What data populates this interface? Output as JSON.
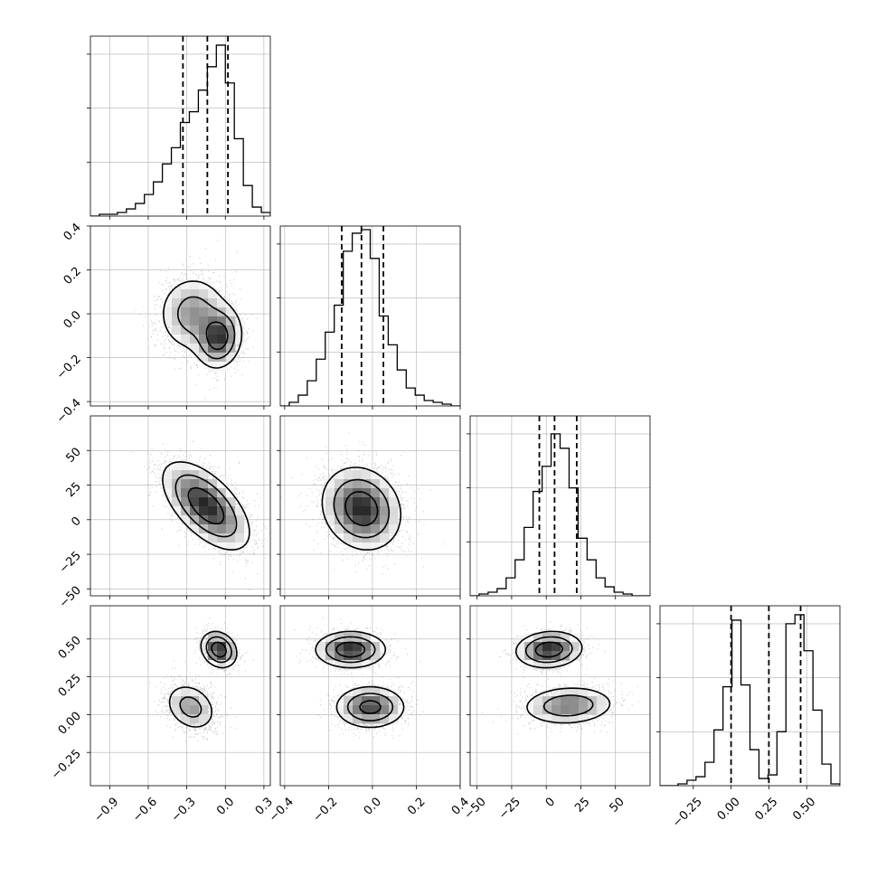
{
  "figure": {
    "type": "corner-plot",
    "num_parameters": 4
  },
  "colors": {
    "contour": "#000000",
    "points": "#9a9a9a",
    "grid": "#b0b0b0",
    "quantile_line": "#000000"
  },
  "chart_data": [
    {
      "panel": "hist-0",
      "type": "histogram",
      "xlim": [
        -1.05,
        0.35
      ],
      "edges": [
        -1.05,
        -0.98,
        -0.91,
        -0.84,
        -0.77,
        -0.7,
        -0.63,
        -0.56,
        -0.49,
        -0.42,
        -0.35,
        -0.28,
        -0.21,
        -0.14,
        -0.07,
        0.0,
        0.07,
        0.14,
        0.21,
        0.28,
        0.35
      ],
      "counts": [
        0.0,
        0.01,
        0.01,
        0.02,
        0.04,
        0.07,
        0.12,
        0.19,
        0.29,
        0.38,
        0.52,
        0.58,
        0.7,
        0.83,
        0.95,
        0.74,
        0.43,
        0.17,
        0.05,
        0.02
      ],
      "quantiles": [
        -0.33,
        -0.14,
        0.02
      ],
      "ylim": [
        0,
        1.0
      ],
      "y_ticks": [
        0.3,
        0.6,
        0.9
      ],
      "grid": true
    },
    {
      "panel": "hist-1",
      "type": "histogram",
      "xlim": [
        -0.42,
        0.4
      ],
      "edges": [
        -0.42,
        -0.379,
        -0.338,
        -0.297,
        -0.256,
        -0.215,
        -0.174,
        -0.133,
        -0.092,
        -0.051,
        -0.01,
        0.031,
        0.072,
        0.113,
        0.154,
        0.195,
        0.236,
        0.277,
        0.318,
        0.359,
        0.4
      ],
      "counts": [
        0.0,
        0.02,
        0.06,
        0.14,
        0.26,
        0.41,
        0.56,
        0.86,
        0.96,
        0.98,
        0.82,
        0.5,
        0.34,
        0.2,
        0.1,
        0.06,
        0.03,
        0.02,
        0.01,
        0.0
      ],
      "quantiles": [
        -0.14,
        -0.05,
        0.05
      ],
      "ylim": [
        0,
        1.0
      ],
      "y_ticks": [
        0.3,
        0.6,
        0.9
      ],
      "grid": true
    },
    {
      "panel": "hist-2",
      "type": "histogram",
      "xlim": [
        -55,
        75
      ],
      "edges": [
        -55,
        -48.5,
        -42,
        -35.5,
        -29,
        -22.5,
        -16,
        -9.5,
        -3,
        3.5,
        10,
        16.5,
        23,
        29.5,
        36,
        42.5,
        49,
        55.5,
        62,
        68.5,
        75
      ],
      "counts": [
        0.0,
        0.01,
        0.02,
        0.04,
        0.1,
        0.2,
        0.38,
        0.58,
        0.72,
        0.9,
        0.82,
        0.6,
        0.32,
        0.2,
        0.1,
        0.05,
        0.02,
        0.01,
        0.0,
        0.0
      ],
      "quantiles": [
        -5,
        6,
        22
      ],
      "ylim": [
        0,
        1.0
      ],
      "y_ticks": [
        0.3,
        0.6,
        0.9
      ],
      "grid": true
    },
    {
      "panel": "hist-3",
      "type": "histogram",
      "xlim": [
        -0.47,
        0.72
      ],
      "edges": [
        -0.47,
        -0.4105,
        -0.351,
        -0.2915,
        -0.232,
        -0.1725,
        -0.113,
        -0.0535,
        0.006,
        0.0655,
        0.125,
        0.1845,
        0.244,
        0.3035,
        0.363,
        0.4225,
        0.482,
        0.5415,
        0.601,
        0.6605,
        0.72
      ],
      "counts": [
        0.0,
        0.0,
        0.01,
        0.03,
        0.05,
        0.13,
        0.31,
        0.55,
        0.92,
        0.56,
        0.2,
        0.04,
        0.06,
        0.3,
        0.9,
        0.95,
        0.75,
        0.42,
        0.12,
        0.01
      ],
      "quantiles": [
        0.0,
        0.25,
        0.46
      ],
      "ylim": [
        0,
        1.0
      ],
      "y_ticks": [
        0.3,
        0.6,
        0.9
      ],
      "grid": true
    },
    {
      "panel": "scatter-1-0",
      "type": "scatter-contour",
      "x_param": 0,
      "y_param": 1,
      "xlim": [
        -1.05,
        0.35
      ],
      "ylim": [
        -0.42,
        0.4
      ],
      "clusters": [
        {
          "mean": [
            -0.25,
            0.0
          ],
          "sd": [
            0.14,
            0.09
          ],
          "rho": 0.0,
          "weight": 0.55
        },
        {
          "mean": [
            -0.05,
            -0.11
          ],
          "sd": [
            0.09,
            0.07
          ],
          "rho": 0.1,
          "weight": 0.45
        }
      ],
      "grid": true
    },
    {
      "panel": "scatter-2-0",
      "type": "scatter-contour",
      "x_param": 0,
      "y_param": 2,
      "xlim": [
        -1.05,
        0.35
      ],
      "ylim": [
        -55,
        75
      ],
      "clusters": [
        {
          "mean": [
            -0.15,
            10
          ],
          "sd": [
            0.17,
            16
          ],
          "rho": -0.6,
          "weight": 1.0
        }
      ],
      "grid": true
    },
    {
      "panel": "scatter-3-0",
      "type": "scatter-contour",
      "x_param": 0,
      "y_param": 3,
      "xlim": [
        -1.05,
        0.35
      ],
      "ylim": [
        -0.47,
        0.72
      ],
      "clusters": [
        {
          "mean": [
            -0.27,
            0.05
          ],
          "sd": [
            0.1,
            0.08
          ],
          "rho": -0.25,
          "weight": 0.5
        },
        {
          "mean": [
            -0.05,
            0.43
          ],
          "sd": [
            0.07,
            0.06
          ],
          "rho": -0.2,
          "weight": 0.5
        }
      ],
      "grid": true
    },
    {
      "panel": "scatter-2-1",
      "type": "scatter-contour",
      "x_param": 1,
      "y_param": 2,
      "xlim": [
        -0.42,
        0.4
      ],
      "ylim": [
        -55,
        75
      ],
      "clusters": [
        {
          "mean": [
            -0.05,
            8
          ],
          "sd": [
            0.09,
            15
          ],
          "rho": -0.15,
          "weight": 1.0
        }
      ],
      "grid": true
    },
    {
      "panel": "scatter-3-1",
      "type": "scatter-contour",
      "x_param": 1,
      "y_param": 3,
      "xlim": [
        -0.42,
        0.4
      ],
      "ylim": [
        -0.47,
        0.72
      ],
      "clusters": [
        {
          "mean": [
            -0.1,
            0.43
          ],
          "sd": [
            0.08,
            0.06
          ],
          "rho": 0.0,
          "weight": 0.5
        },
        {
          "mean": [
            -0.01,
            0.05
          ],
          "sd": [
            0.08,
            0.07
          ],
          "rho": 0.0,
          "weight": 0.5
        }
      ],
      "grid": true
    },
    {
      "panel": "scatter-3-2",
      "type": "scatter-contour",
      "x_param": 2,
      "y_param": 3,
      "xlim": [
        -55,
        75
      ],
      "ylim": [
        -0.47,
        0.72
      ],
      "clusters": [
        {
          "mean": [
            2,
            0.43
          ],
          "sd": [
            12,
            0.06
          ],
          "rho": 0.1,
          "weight": 0.5
        },
        {
          "mean": [
            16,
            0.06
          ],
          "sd": [
            17,
            0.065
          ],
          "rho": 0.1,
          "weight": 0.5
        }
      ],
      "grid": true
    }
  ],
  "axes": {
    "x_ticks": [
      [
        "-0.9",
        "-0.6",
        "-0.3",
        "0.0",
        "0.3"
      ],
      [
        "-0.4",
        "-0.2",
        "0.0",
        "0.2",
        "0.4"
      ],
      [
        "-50",
        "-25",
        "0",
        "25",
        "50"
      ],
      [
        "-0.25",
        "0.00",
        "0.25",
        "0.50"
      ]
    ],
    "y_ticks": [
      [],
      [
        "-0.4",
        "-0.2",
        "0.0",
        "0.2",
        "0.4"
      ],
      [
        "-50",
        "-25",
        "0",
        "25",
        "50"
      ],
      [
        "-0.25",
        "0.00",
        "0.25",
        "0.50"
      ]
    ]
  }
}
